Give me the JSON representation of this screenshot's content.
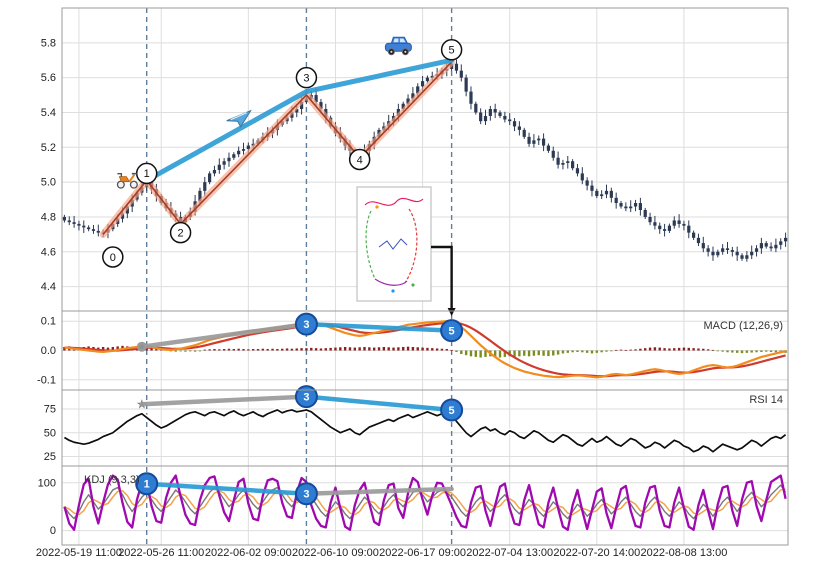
{
  "chart_data": {
    "type": "candlestick",
    "title": "",
    "bar_count": 150,
    "x_axis": {
      "tick_labels": [
        "2022-05-19 11:00",
        "2022-05-26 11:00",
        "2022-06-02 09:00",
        "2022-06-10 09:00",
        "2022-06-17 09:00",
        "2022-07-04 13:00",
        "2022-07-20 14:00",
        "2022-08-08 13:00"
      ],
      "tick_indices": [
        3,
        20,
        38,
        56,
        74,
        92,
        110,
        128
      ]
    },
    "panels": {
      "price": {
        "y_ticks": [
          "5.8",
          "5.6",
          "5.4",
          "5.2",
          "5.0",
          "4.8",
          "4.6",
          "4.4"
        ],
        "y_tick_values": [
          5.8,
          5.6,
          5.4,
          5.2,
          5.0,
          4.8,
          4.6,
          4.4
        ],
        "range": [
          4.26,
          6.0
        ],
        "close": [
          4.78,
          4.77,
          4.76,
          4.75,
          4.74,
          4.73,
          4.72,
          4.71,
          4.71,
          4.73,
          4.76,
          4.79,
          4.82,
          4.86,
          4.9,
          4.94,
          4.97,
          5.0,
          4.96,
          4.92,
          4.88,
          4.85,
          4.82,
          4.8,
          4.77,
          4.8,
          4.83,
          4.89,
          4.95,
          5.0,
          5.05,
          5.07,
          5.1,
          5.12,
          5.14,
          5.16,
          5.18,
          5.19,
          5.21,
          5.22,
          5.24,
          5.26,
          5.28,
          5.3,
          5.33,
          5.35,
          5.37,
          5.4,
          5.42,
          5.46,
          5.48,
          5.5,
          5.46,
          5.42,
          5.37,
          5.32,
          5.28,
          5.25,
          5.21,
          5.18,
          5.16,
          5.15,
          5.18,
          5.22,
          5.26,
          5.3,
          5.32,
          5.35,
          5.38,
          5.42,
          5.45,
          5.48,
          5.51,
          5.55,
          5.58,
          5.6,
          5.61,
          5.62,
          5.64,
          5.65,
          5.68,
          5.64,
          5.6,
          5.52,
          5.45,
          5.4,
          5.35,
          5.38,
          5.42,
          5.4,
          5.38,
          5.36,
          5.35,
          5.32,
          5.3,
          5.26,
          5.22,
          5.24,
          5.25,
          5.21,
          5.18,
          5.14,
          5.1,
          5.11,
          5.12,
          5.08,
          5.05,
          5.01,
          4.98,
          4.95,
          4.92,
          4.93,
          4.95,
          4.91,
          4.88,
          4.86,
          4.85,
          4.86,
          4.88,
          4.84,
          4.8,
          4.77,
          4.75,
          4.73,
          4.72,
          4.75,
          4.78,
          4.76,
          4.75,
          4.71,
          4.68,
          4.65,
          4.62,
          4.6,
          4.58,
          4.6,
          4.62,
          4.61,
          4.6,
          4.58,
          4.56,
          4.58,
          4.6,
          4.62,
          4.65,
          4.63,
          4.62,
          4.64,
          4.66,
          4.68
        ]
      },
      "macd": {
        "label": "MACD (12,26,9)",
        "y_ticks": [
          "0.1",
          "0.0",
          "-0.1"
        ],
        "y_tick_values": [
          0.1,
          0.0,
          -0.1
        ],
        "range": [
          -0.135,
          0.135
        ],
        "dif": [
          0.01,
          0.008,
          0.006,
          0.004,
          0.002,
          0.0,
          -0.002,
          -0.004,
          -0.005,
          -0.003,
          -0.001,
          0.002,
          0.005,
          0.008,
          0.01,
          0.012,
          0.014,
          0.016,
          0.012,
          0.008,
          0.005,
          0.003,
          0.002,
          0.004,
          0.006,
          0.01,
          0.014,
          0.018,
          0.024,
          0.03,
          0.036,
          0.04,
          0.044,
          0.048,
          0.052,
          0.056,
          0.06,
          0.063,
          0.066,
          0.068,
          0.07,
          0.072,
          0.074,
          0.076,
          0.078,
          0.08,
          0.083,
          0.086,
          0.09,
          0.094,
          0.096,
          0.098,
          0.094,
          0.09,
          0.084,
          0.078,
          0.072,
          0.066,
          0.06,
          0.056,
          0.052,
          0.05,
          0.052,
          0.056,
          0.06,
          0.064,
          0.068,
          0.072,
          0.076,
          0.08,
          0.084,
          0.088,
          0.09,
          0.092,
          0.094,
          0.096,
          0.097,
          0.098,
          0.099,
          0.1,
          0.098,
          0.09,
          0.08,
          0.066,
          0.05,
          0.034,
          0.018,
          0.004,
          -0.01,
          -0.022,
          -0.034,
          -0.044,
          -0.052,
          -0.06,
          -0.066,
          -0.072,
          -0.076,
          -0.08,
          -0.083,
          -0.086,
          -0.088,
          -0.09,
          -0.091,
          -0.09,
          -0.088,
          -0.086,
          -0.085,
          -0.086,
          -0.088,
          -0.09,
          -0.092,
          -0.09,
          -0.086,
          -0.082,
          -0.08,
          -0.082,
          -0.084,
          -0.082,
          -0.078,
          -0.074,
          -0.07,
          -0.066,
          -0.064,
          -0.066,
          -0.07,
          -0.074,
          -0.078,
          -0.08,
          -0.078,
          -0.074,
          -0.068,
          -0.062,
          -0.056,
          -0.052,
          -0.05,
          -0.052,
          -0.056,
          -0.058,
          -0.056,
          -0.052,
          -0.046,
          -0.04,
          -0.034,
          -0.028,
          -0.022,
          -0.018,
          -0.014,
          -0.01,
          -0.006,
          -0.002
        ],
        "hist": [
          0.012,
          0.014,
          0.012,
          0.01,
          0.012,
          0.014,
          0.012,
          0.01,
          0.012,
          0.01,
          0.012,
          0.014,
          0.016,
          0.014,
          0.012,
          0.014,
          0.012,
          0.01,
          0.008,
          0.006,
          0.004,
          0.003,
          -0.003,
          -0.004,
          -0.003,
          -0.004,
          -0.003,
          -0.004,
          -0.003,
          0.003,
          0.004,
          0.005,
          0.004,
          0.005,
          0.006,
          0.005,
          0.006,
          0.005,
          0.004,
          0.005,
          0.005,
          0.006,
          0.005,
          0.006,
          0.005,
          0.006,
          0.007,
          0.006,
          0.007,
          0.008,
          0.008,
          0.009,
          0.008,
          0.007,
          0.008,
          0.009,
          0.01,
          0.011,
          0.012,
          0.011,
          0.01,
          0.011,
          0.012,
          0.011,
          0.01,
          0.011,
          0.012,
          0.011,
          0.01,
          0.011,
          0.012,
          0.013,
          0.012,
          0.011,
          0.01,
          0.009,
          0.008,
          0.007,
          0.006,
          0.005,
          0.002,
          -0.005,
          -0.012,
          -0.016,
          -0.02,
          -0.022,
          -0.024,
          -0.022,
          -0.02,
          -0.022,
          -0.024,
          -0.022,
          -0.02,
          -0.022,
          -0.02,
          -0.018,
          -0.02,
          -0.018,
          -0.016,
          -0.018,
          -0.019,
          -0.017,
          -0.014,
          -0.01,
          -0.008,
          -0.006,
          -0.005,
          -0.006,
          -0.008,
          -0.01,
          -0.008,
          -0.006,
          -0.004,
          -0.002,
          0.002,
          0.003,
          0.002,
          0.003,
          0.004,
          0.006,
          0.008,
          0.01,
          0.011,
          0.01,
          0.008,
          0.007,
          0.008,
          0.009,
          0.01,
          0.009,
          0.008,
          0.007,
          0.006,
          0.004,
          0.002,
          -0.002,
          -0.004,
          -0.006,
          -0.007,
          -0.008,
          -0.009,
          -0.008,
          -0.007,
          -0.006,
          -0.005,
          -0.004,
          -0.005,
          -0.006,
          -0.007,
          -0.008
        ]
      },
      "rsi": {
        "label": "RSI 14",
        "y_ticks": [
          "75",
          "50",
          "25"
        ],
        "y_tick_values": [
          75,
          50,
          25
        ],
        "range": [
          15,
          95
        ],
        "rsi": [
          45,
          42,
          40,
          39,
          38,
          39,
          41,
          43,
          46,
          48,
          50,
          54,
          58,
          62,
          65,
          68,
          70,
          66,
          62,
          58,
          55,
          57,
          60,
          63,
          66,
          69,
          71,
          72,
          70,
          68,
          71,
          72,
          70,
          68,
          71,
          73,
          70,
          68,
          70,
          72,
          69,
          67,
          70,
          72,
          74,
          71,
          73,
          74,
          72,
          73,
          74,
          72,
          68,
          64,
          60,
          56,
          53,
          50,
          52,
          54,
          50,
          48,
          52,
          56,
          58,
          60,
          62,
          64,
          62,
          65,
          67,
          69,
          66,
          68,
          70,
          72,
          70,
          68,
          70,
          72,
          68,
          62,
          56,
          50,
          46,
          50,
          54,
          56,
          52,
          54,
          50,
          48,
          52,
          50,
          46,
          44,
          48,
          52,
          50,
          46,
          42,
          40,
          44,
          48,
          46,
          42,
          38,
          36,
          40,
          44,
          40,
          42,
          46,
          42,
          38,
          36,
          40,
          44,
          42,
          38,
          34,
          36,
          40,
          38,
          34,
          38,
          42,
          40,
          36,
          34,
          30,
          32,
          36,
          34,
          30,
          34,
          38,
          36,
          34,
          32,
          34,
          38,
          42,
          40,
          36,
          40,
          44,
          46,
          44,
          48
        ]
      },
      "kdj": {
        "label": "KDJ (9,3,3)",
        "y_ticks": [
          "100",
          "0"
        ],
        "y_tick_values": [
          100,
          0
        ],
        "range": [
          -30,
          135
        ],
        "k": [
          50,
          35,
          25,
          40,
          60,
          75,
          60,
          45,
          55,
          70,
          85,
          90,
          75,
          55,
          40,
          55,
          70,
          80,
          65,
          50,
          40,
          55,
          70,
          85,
          75,
          60,
          45,
          35,
          50,
          65,
          80,
          90,
          80,
          65,
          50,
          60,
          75,
          85,
          70,
          55,
          45,
          60,
          75,
          85,
          90,
          75,
          60,
          50,
          65,
          80,
          85,
          70,
          55,
          40,
          30,
          45,
          60,
          50,
          35,
          25,
          40,
          55,
          70,
          60,
          45,
          35,
          50,
          65,
          75,
          60,
          50,
          65,
          80,
          85,
          75,
          60,
          70,
          80,
          85,
          80,
          70,
          55,
          40,
          30,
          45,
          60,
          70,
          55,
          40,
          50,
          65,
          75,
          60,
          45,
          35,
          50,
          65,
          55,
          40,
          30,
          45,
          60,
          50,
          35,
          25,
          40,
          55,
          45,
          30,
          40,
          55,
          65,
          50,
          35,
          45,
          60,
          70,
          55,
          40,
          30,
          45,
          60,
          70,
          55,
          40,
          30,
          45,
          60,
          50,
          35,
          25,
          40,
          55,
          45,
          30,
          45,
          60,
          70,
          55,
          40,
          55,
          70,
          80,
          65,
          50,
          60,
          75,
          85,
          95,
          80
        ]
      }
    },
    "annotations": {
      "vlines": [
        17,
        50,
        80
      ],
      "zigzag": [
        [
          8,
          4.7
        ],
        [
          17,
          5.01
        ],
        [
          24,
          4.76
        ],
        [
          50,
          5.5
        ],
        [
          61,
          5.14
        ],
        [
          80,
          5.69
        ]
      ],
      "trendline": [
        [
          17,
          5.01
        ],
        [
          50,
          5.52
        ],
        [
          80,
          5.7
        ]
      ],
      "wave_circles": [
        {
          "label": "0",
          "idx": 10,
          "price": 4.57
        },
        {
          "label": "1",
          "idx": 17,
          "price": 5.05
        },
        {
          "label": "2",
          "idx": 24,
          "price": 4.71
        },
        {
          "label": "3",
          "idx": 50,
          "price": 5.6
        },
        {
          "label": "4",
          "idx": 61,
          "price": 5.13
        },
        {
          "label": "5",
          "idx": 80,
          "price": 5.76
        }
      ],
      "icons": [
        {
          "name": "scooter-icon",
          "idx": 13,
          "price": 5.02
        },
        {
          "name": "airplane-icon",
          "idx": 36,
          "price": 5.37
        },
        {
          "name": "car-icon",
          "idx": 69,
          "price": 5.78
        }
      ],
      "macd": {
        "dot": [
          16,
          0.013
        ],
        "segments": [
          {
            "color": "gray",
            "points": [
              [
                16,
                0.013
              ],
              [
                50,
                0.09
              ]
            ]
          },
          {
            "color": "blue",
            "points": [
              [
                50,
                0.09
              ],
              [
                80,
                0.068
              ]
            ]
          }
        ],
        "circles": [
          {
            "label": "3",
            "idx": 50,
            "value": 0.09
          },
          {
            "label": "5",
            "idx": 80,
            "value": 0.068
          }
        ]
      },
      "rsi": {
        "star": [
          16,
          80
        ],
        "segments": [
          {
            "color": "gray",
            "points": [
              [
                16,
                80
              ],
              [
                50,
                88
              ]
            ]
          },
          {
            "color": "blue",
            "points": [
              [
                50,
                88
              ],
              [
                80,
                74
              ]
            ]
          }
        ],
        "circles": [
          {
            "label": "3",
            "idx": 50,
            "value": 88
          },
          {
            "label": "5",
            "idx": 80,
            "value": 74
          }
        ]
      },
      "kdj": {
        "segments": [
          {
            "color": "blue",
            "points": [
              [
                17,
                98
              ],
              [
                50,
                77
              ]
            ]
          },
          {
            "color": "gray",
            "points": [
              [
                50,
                77
              ],
              [
                80,
                87
              ]
            ]
          }
        ],
        "circles": [
          {
            "label": "1",
            "idx": 17,
            "value": 98
          },
          {
            "label": "3",
            "idx": 50,
            "value": 77
          }
        ]
      }
    },
    "glyphs": {
      "star": "★"
    },
    "colors": {
      "candle": "#2c3a54",
      "grid": "#dedede",
      "panel_border": "#9b9b9b",
      "vline": "#5f7f9f",
      "zigzag": "#f5a383",
      "zigzag_edge": "#a63d2a",
      "trend": "#2a9ad4",
      "gray_line": "#9a9a9a",
      "ind_circle_fill": "#2e7dd2",
      "ind_circle_stroke": "#164a9a",
      "macd_dif": "#f28c1e",
      "macd_dea": "#cf3b2d",
      "hist_up": "#8f1f1f",
      "hist_down": "#7b8c21",
      "rsi_line": "#0d0d0d",
      "kdj_k": "#777777",
      "kdj_d": "#f2a24b",
      "kdj_j": "#a008b0"
    }
  }
}
